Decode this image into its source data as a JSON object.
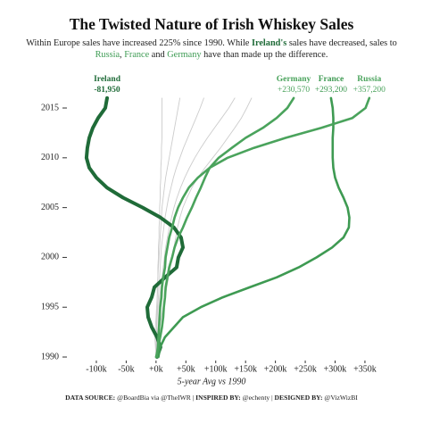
{
  "chart_data": {
    "type": "line",
    "title": "The Twisted Nature of Irish Whiskey Sales",
    "subtitle": [
      "Within Europe sales have increased 225% since 1990. While ",
      "Ireland's",
      " sales have decreased, sales to",
      "Russia",
      ", ",
      "France",
      " and ",
      "Germany",
      " have than made up the difference."
    ],
    "x_label": "5-year Avg vs 1990",
    "footer": [
      "DATA SOURCE:",
      " @BoardBia via @TheIWR | ",
      "INSPIRED BY:",
      " @echenty | ",
      "DESIGNED BY:",
      " @VizWizBI"
    ],
    "years": [
      1990,
      1991,
      1992,
      1993,
      1994,
      1995,
      1996,
      1997,
      1998,
      1999,
      2000,
      2001,
      2002,
      2003,
      2004,
      2005,
      2006,
      2007,
      2008,
      2009,
      2010,
      2011,
      2012,
      2013,
      2014,
      2015,
      2016
    ],
    "xlim": [
      -120000,
      380000
    ],
    "xticks": [
      {
        "value": -100000,
        "label": "-100k"
      },
      {
        "value": -50000,
        "label": "-50k"
      },
      {
        "value": 0,
        "label": "+0k"
      },
      {
        "value": 50000,
        "label": "+50k"
      },
      {
        "value": 100000,
        "label": "+100k"
      },
      {
        "value": 150000,
        "label": "+150k"
      },
      {
        "value": 200000,
        "label": "+200k"
      },
      {
        "value": 250000,
        "label": "+250k"
      },
      {
        "value": 300000,
        "label": "+300k"
      },
      {
        "value": 350000,
        "label": "+350k"
      }
    ],
    "ylim": [
      1989,
      2017
    ],
    "yticks": [
      1990,
      1995,
      2000,
      2005,
      2010,
      2015
    ],
    "series": [
      {
        "color": "#cccccc",
        "values": [
          0,
          1000,
          2000,
          3000,
          4000,
          5000,
          6000,
          8000,
          10000,
          12000,
          14000,
          16000,
          19000,
          22000,
          26000,
          30000,
          35000,
          41000,
          48000,
          56000,
          65000,
          75000,
          86000,
          98000,
          110000,
          122000,
          132000
        ]
      },
      {
        "color": "#cccccc",
        "values": [
          0,
          0,
          1000,
          1000,
          2000,
          3000,
          4000,
          5000,
          6000,
          7000,
          8000,
          9000,
          11000,
          13000,
          15000,
          18000,
          21000,
          25000,
          29000,
          34000,
          40000,
          46000,
          53000,
          60000,
          67000,
          74000,
          80000
        ]
      },
      {
        "color": "#cccccc",
        "values": [
          0,
          0,
          0,
          1000,
          1000,
          2000,
          2000,
          3000,
          3000,
          4000,
          5000,
          6000,
          7000,
          8000,
          9000,
          10000,
          12000,
          14000,
          16000,
          19000,
          22000,
          25000,
          28000,
          31000,
          34000,
          37000,
          40000
        ]
      },
      {
        "color": "#cccccc",
        "values": [
          0,
          2000,
          4000,
          6000,
          9000,
          12000,
          15000,
          18000,
          21000,
          24000,
          27000,
          30000,
          33000,
          36000,
          40000,
          45000,
          52000,
          60000,
          70000,
          82000,
          95000,
          108000,
          120000,
          132000,
          143000,
          152000,
          160000
        ]
      },
      {
        "color": "#cccccc",
        "values": [
          0,
          -1000,
          -2000,
          -1000,
          0,
          1000,
          2000,
          2000,
          3000,
          3000,
          4000,
          4000,
          5000,
          5000,
          6000,
          6000,
          7000,
          7000,
          8000,
          8000,
          9000,
          9000,
          10000,
          10000,
          10000,
          10000,
          10000
        ]
      },
      {
        "name": "Ireland",
        "color": "#1f6b38",
        "values": [
          1600,
          7600,
          1600,
          -7300,
          -13300,
          -14800,
          -7300,
          -2800,
          15100,
          34500,
          37500,
          45000,
          42000,
          30000,
          7600,
          -22300,
          -55200,
          -82100,
          -100000,
          -112000,
          -116500,
          -115000,
          -112000,
          -106000,
          -97000,
          -85000,
          -81950
        ],
        "value_labels": [
          "-81,950"
        ]
      },
      {
        "name": "Germany",
        "color": "#4aa35c",
        "values": [
          0,
          4000,
          7000,
          10000,
          12000,
          13000,
          15000,
          16000,
          19000,
          22000,
          27000,
          31000,
          37000,
          45000,
          52000,
          60000,
          67000,
          75000,
          82000,
          90000,
          105000,
          127000,
          150000,
          179000,
          202000,
          220000,
          230570
        ],
        "value_labels": [
          "+230,570"
        ]
      },
      {
        "name": "France",
        "color": "#3e9a52",
        "values": [
          4000,
          7000,
          15000,
          30000,
          45000,
          75000,
          112000,
          157000,
          202000,
          239000,
          269000,
          295000,
          314000,
          323000,
          324000,
          321000,
          314000,
          306000,
          300000,
          297000,
          296000,
          296000,
          296000,
          297000,
          297000,
          296000,
          293200
        ],
        "value_labels": [
          "+293,200"
        ]
      },
      {
        "name": "Russia",
        "color": "#4aa35c",
        "values": [
          1000,
          3000,
          4000,
          5000,
          6000,
          7000,
          9000,
          10000,
          12000,
          15000,
          16000,
          19000,
          22000,
          27000,
          31000,
          37000,
          45000,
          55000,
          70000,
          90000,
          120000,
          164000,
          217000,
          277000,
          329000,
          351000,
          357200
        ],
        "value_labels": [
          "+357,200"
        ]
      }
    ]
  }
}
